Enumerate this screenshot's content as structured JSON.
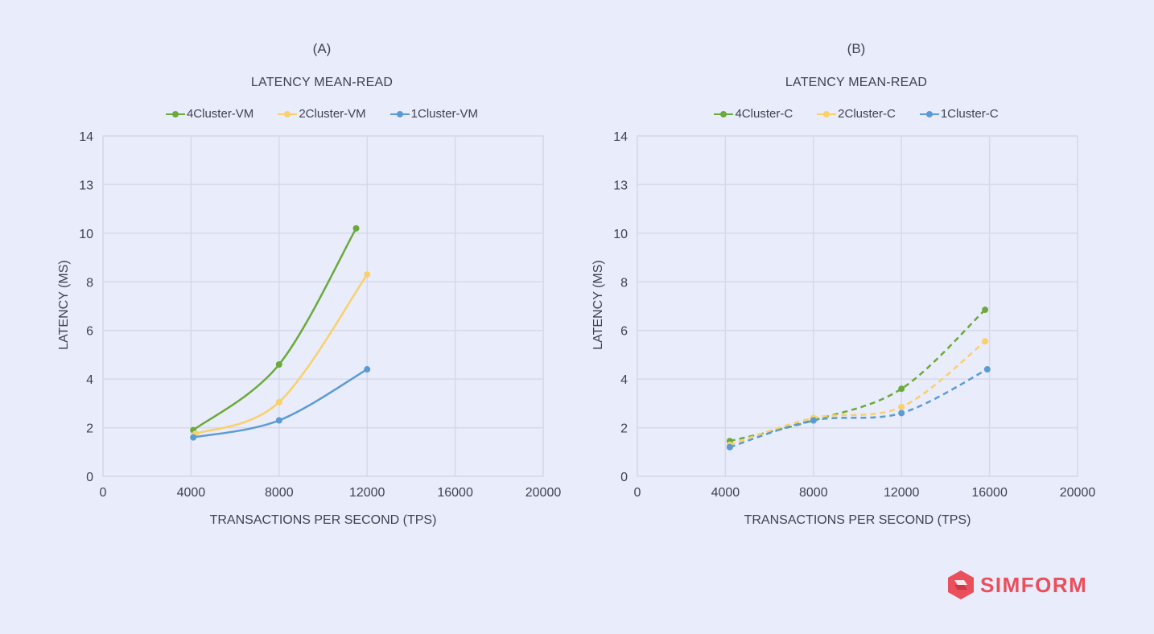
{
  "chart_data": [
    {
      "type": "line",
      "panel_label": "(A)",
      "title": "LATENCY MEAN-READ",
      "xlabel": "TRANSACTIONS PER SECOND (TPS)",
      "ylabel": "LATENCY (MS)",
      "x_ticks": [
        0,
        4000,
        8000,
        12000,
        16000,
        20000
      ],
      "y_ticks": [
        "0",
        "2",
        "4",
        "6",
        "8",
        "10",
        "13",
        "14"
      ],
      "grid": true,
      "legend_position": "top",
      "line_style": "solid",
      "series": [
        {
          "name": "4Cluster-VM",
          "color": "#6aaa3a",
          "x": [
            4100,
            8000,
            11500
          ],
          "y": [
            1.9,
            4.6,
            10.3
          ]
        },
        {
          "name": "2Cluster-VM",
          "color": "#f9d06a",
          "x": [
            4200,
            8000,
            12000
          ],
          "y": [
            1.75,
            3.05,
            8.3
          ]
        },
        {
          "name": "1Cluster-VM",
          "color": "#5b9bd5",
          "x": [
            4100,
            8000,
            12000
          ],
          "y": [
            1.6,
            2.3,
            4.4
          ]
        }
      ]
    },
    {
      "type": "line",
      "panel_label": "(B)",
      "title": "LATENCY MEAN-READ",
      "xlabel": "TRANSACTIONS PER SECOND (TPS)",
      "ylabel": "LATENCY (MS)",
      "x_ticks": [
        0,
        4000,
        8000,
        12000,
        16000,
        20000
      ],
      "y_ticks": [
        "0",
        "2",
        "4",
        "6",
        "8",
        "10",
        "13",
        "14"
      ],
      "grid": true,
      "legend_position": "top",
      "line_style": "dashed",
      "series": [
        {
          "name": "4Cluster-C",
          "color": "#6aaa3a",
          "x": [
            4200,
            8000,
            12000,
            15800
          ],
          "y": [
            1.45,
            2.3,
            3.6,
            6.85
          ]
        },
        {
          "name": "2Cluster-C",
          "color": "#f9d06a",
          "x": [
            4200,
            8000,
            12000,
            15800
          ],
          "y": [
            1.3,
            2.4,
            2.85,
            5.55
          ]
        },
        {
          "name": "1Cluster-C",
          "color": "#5b9bd5",
          "x": [
            4200,
            8000,
            12000,
            15900
          ],
          "y": [
            1.2,
            2.3,
            2.6,
            4.4
          ]
        }
      ]
    }
  ],
  "brand": {
    "name": "SIMFORM",
    "logo_icon": "simform-logo-icon",
    "color": "#ea4f5c"
  }
}
